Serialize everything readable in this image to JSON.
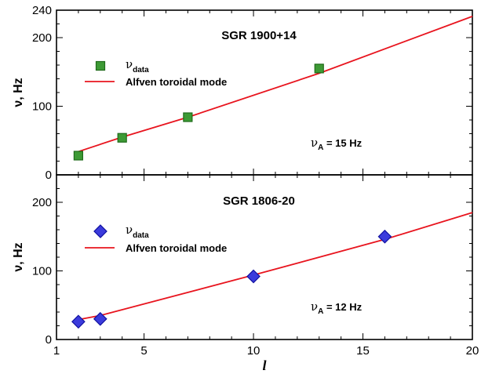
{
  "colors": {
    "fit_line": "#e8141e",
    "top_marker_fill": "#3d9a35",
    "top_marker_edge": "#1f6b1a",
    "bottom_marker_fill": "#3b3bdc",
    "bottom_marker_edge": "#1010a0",
    "axis": "#000000"
  },
  "chart_data": [
    {
      "type": "scatter",
      "title": "SGR 1900+14",
      "xlabel": "",
      "ylabel": "ν, Hz",
      "xlim": [
        1,
        20
      ],
      "ylim": [
        0,
        240
      ],
      "yticks": [
        "0",
        "100",
        "200",
        "240"
      ],
      "grid": false,
      "legend_position": "top-left",
      "annotation": {
        "symbol": "ν",
        "sub": "A",
        "rest": " = 15 Hz"
      },
      "series": [
        {
          "name": "ν",
          "name_sub": "data",
          "kind": "scatter",
          "marker": "square",
          "x": [
            2,
            4,
            7,
            13
          ],
          "y": [
            28,
            54,
            84,
            155
          ]
        },
        {
          "name": "Alfven toroidal mode",
          "kind": "line",
          "x": [
            2,
            4,
            7,
            13,
            20
          ],
          "y": [
            34,
            55,
            84,
            148,
            231
          ]
        }
      ]
    },
    {
      "type": "scatter",
      "title": "SGR 1806-20",
      "xlabel": "l",
      "ylabel": "ν, Hz",
      "xlim": [
        1,
        20
      ],
      "ylim": [
        0,
        240
      ],
      "xticks": [
        "1",
        "5",
        "10",
        "15",
        "20"
      ],
      "yticks": [
        "0",
        "100",
        "200"
      ],
      "grid": false,
      "legend_position": "top-left",
      "annotation": {
        "symbol": "ν",
        "sub": "A",
        "rest": " = 12 Hz"
      },
      "series": [
        {
          "name": "ν",
          "name_sub": "data",
          "kind": "scatter",
          "marker": "diamond",
          "x": [
            2,
            3,
            10,
            16
          ],
          "y": [
            26,
            30,
            92,
            150
          ]
        },
        {
          "name": "Alfven toroidal mode",
          "kind": "line",
          "x": [
            2,
            3,
            10,
            16,
            20
          ],
          "y": [
            29,
            35,
            94,
            146,
            185
          ]
        }
      ]
    }
  ]
}
